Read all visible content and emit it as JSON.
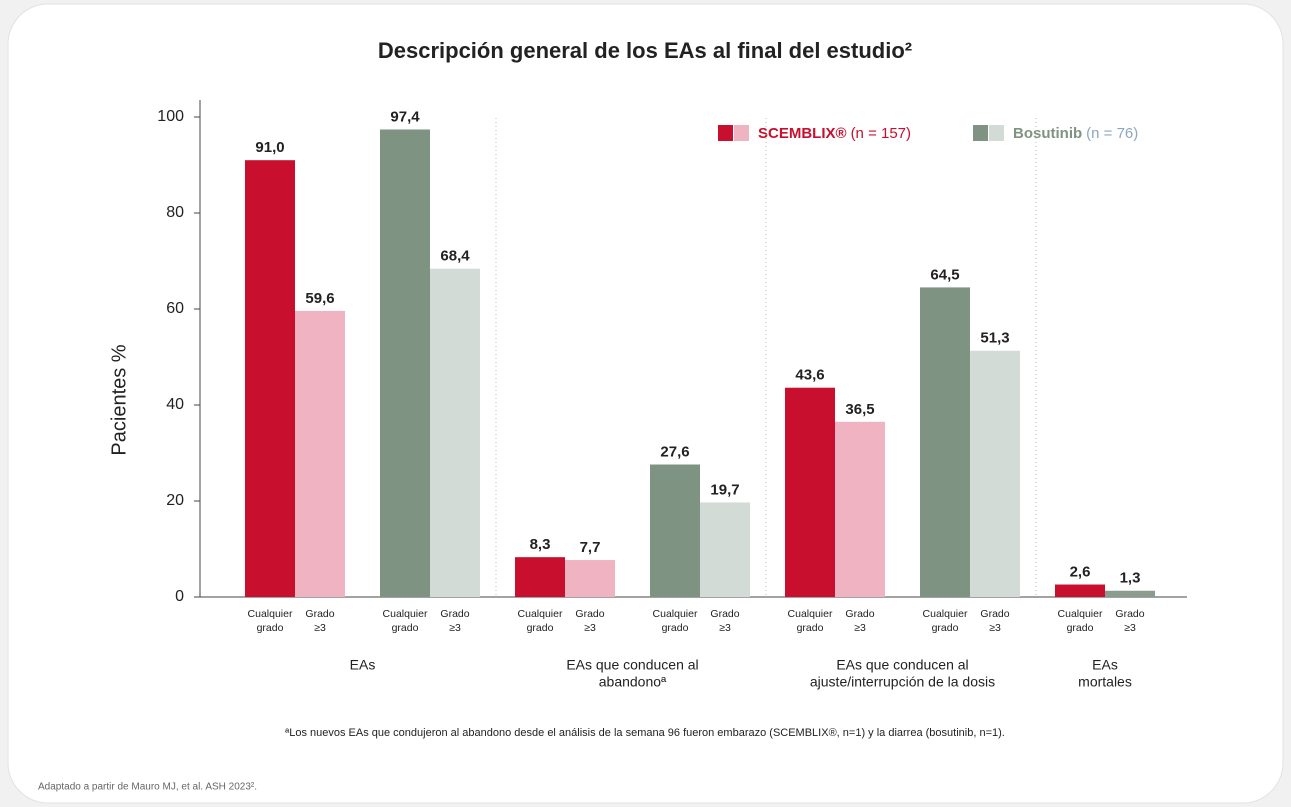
{
  "chart_data": {
    "type": "bar",
    "title": "Descripción general de los EAs al final del estudio²",
    "ylabel": "Pacientes %",
    "ylim": [
      0,
      100
    ],
    "yticks": [
      0,
      20,
      40,
      60,
      80,
      100
    ],
    "legend": [
      {
        "name": "SCEMBLIX®",
        "note": "(n = 157)",
        "colors": [
          "#c8102e",
          "#efb3c2"
        ]
      },
      {
        "name": "Bosutinib",
        "note": "(n = 76)",
        "colors": [
          "#7e9381",
          "#d2dbd5"
        ]
      }
    ],
    "groups": [
      {
        "label": [
          "EAs"
        ],
        "categories": [
          [
            "Cualquier",
            "grado"
          ],
          [
            "Grado",
            "≥3"
          ],
          [
            "Cualquier",
            "grado"
          ],
          [
            "Grado",
            "≥3"
          ]
        ],
        "values": [
          91.0,
          59.6,
          97.4,
          68.4
        ],
        "value_labels": [
          "91,0",
          "59,6",
          "97,4",
          "68,4"
        ],
        "colors": [
          "#c8102e",
          "#efb3c2",
          "#7e9381",
          "#d2dbd5"
        ]
      },
      {
        "label": [
          "EAs que conducen al",
          "abandonoª"
        ],
        "categories": [
          [
            "Cualquier",
            "grado"
          ],
          [
            "Grado",
            "≥3"
          ],
          [
            "Cualquier",
            "grado"
          ],
          [
            "Grado",
            "≥3"
          ]
        ],
        "values": [
          8.3,
          7.7,
          27.6,
          19.7
        ],
        "value_labels": [
          "8,3",
          "7,7",
          "27,6",
          "19,7"
        ],
        "colors": [
          "#c8102e",
          "#efb3c2",
          "#7e9381",
          "#d2dbd5"
        ]
      },
      {
        "label": [
          "EAs que conducen al",
          "ajuste/interrupción de la dosis"
        ],
        "categories": [
          [
            "Cualquier",
            "grado"
          ],
          [
            "Grado",
            "≥3"
          ],
          [
            "Cualquier",
            "grado"
          ],
          [
            "Grado",
            "≥3"
          ]
        ],
        "values": [
          43.6,
          36.5,
          64.5,
          51.3
        ],
        "value_labels": [
          "43,6",
          "36,5",
          "64,5",
          "51,3"
        ],
        "colors": [
          "#c8102e",
          "#efb3c2",
          "#7e9381",
          "#d2dbd5"
        ]
      },
      {
        "label": [
          "EAs",
          "mortales"
        ],
        "categories": [
          [
            "Cualquier",
            "grado"
          ],
          [
            "Grado",
            "≥3"
          ]
        ],
        "values": [
          2.6,
          1.3
        ],
        "value_labels": [
          "2,6",
          "1,3"
        ],
        "colors": [
          "#c8102e",
          "#8a9c8d"
        ]
      }
    ],
    "footnote": "ªLos nuevos EAs que condujeron al abandono desde el análisis de la semana 96 fueron embarazo (SCEMBLIX®, n=1) y la diarrea (bosutinib, n=1).",
    "source": "Adaptado a partir de Mauro MJ, et al. ASH 2023².",
    "divider_style": "dotted"
  }
}
